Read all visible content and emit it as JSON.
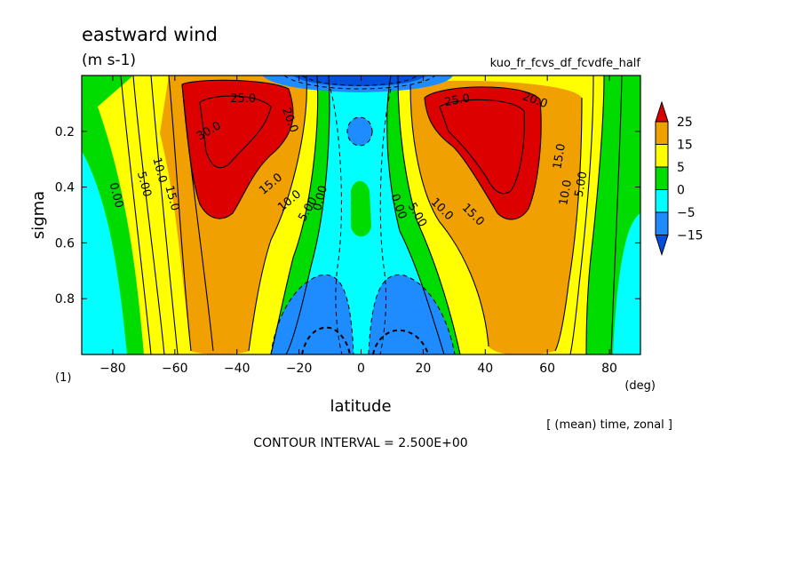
{
  "title": "eastward wind",
  "units": "(m s-1)",
  "experiment": "kuo_fr_fcvs_df_fcvdfe_half",
  "panel_label": "(1)",
  "x_unit": "(deg)",
  "footer_note": "[ (mean) time, zonal ]",
  "contour_interval": "CONTOUR INTERVAL = 2.500E+00",
  "chart_data": {
    "type": "contour",
    "xlabel": "latitude",
    "ylabel": "sigma",
    "xlim": [
      -90,
      90
    ],
    "ylim": [
      0,
      1
    ],
    "y_inverted": true,
    "x_ticks": [
      -80,
      -60,
      -40,
      -20,
      0,
      20,
      40,
      60,
      80
    ],
    "y_ticks": [
      0.2,
      0.4,
      0.6,
      0.8
    ],
    "x_tick_labels": [
      "−80",
      "−60",
      "−40",
      "−20",
      "0",
      "20",
      "40",
      "60",
      "80"
    ],
    "y_tick_labels": [
      "0.2",
      "0.4",
      "0.6",
      "0.8"
    ],
    "contour_interval": 2.5,
    "colorbar": {
      "levels": [
        -15,
        -5,
        0,
        5,
        15,
        25
      ],
      "labels": [
        "25",
        "15",
        "5",
        "0",
        "−5",
        "−15"
      ],
      "colors": [
        "#dc0000",
        "#f0a000",
        "#ffff00",
        "#00dc00",
        "#00ffff",
        "#1e8cff",
        "#0050dc"
      ]
    },
    "features": [
      {
        "name": "southern jet maximum",
        "lat": -42,
        "sigma": 0.25,
        "max": 30
      },
      {
        "name": "northern jet maximum",
        "lat": 45,
        "sigma": 0.25,
        "max": 27.5
      },
      {
        "name": "near-surface easterlies south",
        "lat": -15,
        "sigma": 0.9,
        "min": -10
      },
      {
        "name": "near-surface easterlies north",
        "lat": 15,
        "sigma": 0.9,
        "min": -10
      }
    ],
    "contour_labels": [
      {
        "text": "30.0",
        "lat": -49,
        "sigma": 0.2,
        "angle": -30
      },
      {
        "text": "25.0",
        "lat": -38,
        "sigma": 0.085,
        "angle": 0
      },
      {
        "text": "20.0",
        "lat": -23,
        "sigma": 0.16,
        "angle": 70
      },
      {
        "text": "0.00",
        "lat": -79,
        "sigma": 0.43,
        "angle": 75
      },
      {
        "text": "5.00",
        "lat": -70,
        "sigma": 0.39,
        "angle": 75
      },
      {
        "text": "10.0",
        "lat": -65,
        "sigma": 0.34,
        "angle": 75
      },
      {
        "text": "15.0",
        "lat": -61,
        "sigma": 0.44,
        "angle": 75
      },
      {
        "text": "15.0",
        "lat": -29,
        "sigma": 0.39,
        "angle": -40
      },
      {
        "text": "10.0",
        "lat": -23,
        "sigma": 0.45,
        "angle": -40
      },
      {
        "text": "5.00",
        "lat": -17,
        "sigma": 0.48,
        "angle": -60
      },
      {
        "text": "0.00",
        "lat": -13,
        "sigma": 0.44,
        "angle": -75
      },
      {
        "text": "25.0",
        "lat": 31,
        "sigma": 0.09,
        "angle": -10
      },
      {
        "text": "20.0",
        "lat": 56,
        "sigma": 0.09,
        "angle": 20
      },
      {
        "text": "0.00",
        "lat": 12,
        "sigma": 0.47,
        "angle": 70
      },
      {
        "text": "5.00",
        "lat": 18,
        "sigma": 0.5,
        "angle": 60
      },
      {
        "text": "10.0",
        "lat": 26,
        "sigma": 0.48,
        "angle": 45
      },
      {
        "text": "15.0",
        "lat": 36,
        "sigma": 0.5,
        "angle": 45
      },
      {
        "text": "15.0",
        "lat": 64,
        "sigma": 0.29,
        "angle": -80
      },
      {
        "text": "10.0",
        "lat": 66,
        "sigma": 0.42,
        "angle": -80
      },
      {
        "text": "5.00",
        "lat": 71,
        "sigma": 0.39,
        "angle": -80
      }
    ]
  }
}
